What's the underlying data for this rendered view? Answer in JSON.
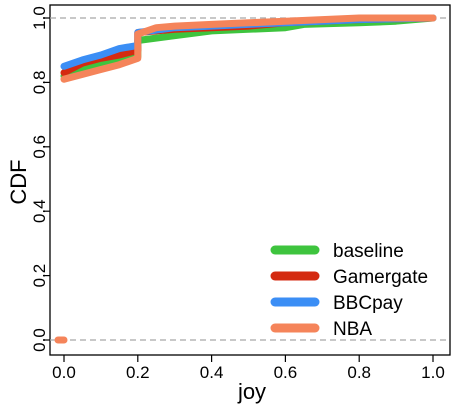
{
  "chart_data": {
    "type": "line",
    "title": "",
    "xlabel": "joy",
    "ylabel": "CDF",
    "xlim": [
      0.0,
      1.0
    ],
    "ylim": [
      0.0,
      1.0
    ],
    "x_ticks": [
      "0.0",
      "0.2",
      "0.4",
      "0.6",
      "0.8",
      "1.0"
    ],
    "y_ticks": [
      "0.0",
      "0.2",
      "0.4",
      "0.6",
      "0.8",
      "1.0"
    ],
    "x_tick_values": [
      0.0,
      0.2,
      0.4,
      0.6,
      0.8,
      1.0
    ],
    "y_tick_values": [
      0.0,
      0.2,
      0.4,
      0.6,
      0.8,
      1.0
    ],
    "reference_lines_y": [
      0.0,
      1.0
    ],
    "legend_position": "bottom-right",
    "series": [
      {
        "name": "baseline",
        "color": "#3ec43e",
        "points": [
          [
            0.0,
            0.82
          ],
          [
            0.05,
            0.84
          ],
          [
            0.1,
            0.855
          ],
          [
            0.15,
            0.87
          ],
          [
            0.2,
            0.88
          ],
          [
            0.2,
            0.93
          ],
          [
            0.3,
            0.945
          ],
          [
            0.4,
            0.96
          ],
          [
            0.5,
            0.965
          ],
          [
            0.6,
            0.97
          ],
          [
            0.65,
            0.98
          ],
          [
            0.8,
            0.985
          ],
          [
            0.9,
            0.99
          ],
          [
            1.0,
            1.0
          ]
        ]
      },
      {
        "name": "Gamergate",
        "color": "#d42a10",
        "points": [
          [
            0.0,
            0.83
          ],
          [
            0.05,
            0.86
          ],
          [
            0.1,
            0.875
          ],
          [
            0.15,
            0.885
          ],
          [
            0.2,
            0.9
          ],
          [
            0.2,
            0.955
          ],
          [
            0.3,
            0.965
          ],
          [
            0.4,
            0.97
          ],
          [
            0.5,
            0.975
          ],
          [
            0.6,
            0.985
          ],
          [
            0.7,
            0.99
          ],
          [
            0.8,
            0.995
          ],
          [
            1.0,
            1.0
          ]
        ]
      },
      {
        "name": "BBCpay",
        "color": "#3b8ef5",
        "points": [
          [
            0.0,
            0.85
          ],
          [
            0.05,
            0.87
          ],
          [
            0.1,
            0.885
          ],
          [
            0.15,
            0.905
          ],
          [
            0.2,
            0.915
          ],
          [
            0.2,
            0.955
          ],
          [
            0.3,
            0.97
          ],
          [
            0.4,
            0.975
          ],
          [
            0.5,
            0.98
          ],
          [
            0.6,
            0.985
          ],
          [
            0.7,
            0.99
          ],
          [
            0.8,
            0.995
          ],
          [
            1.0,
            1.0
          ]
        ]
      },
      {
        "name": "NBA",
        "color": "#f5845a",
        "points": [
          [
            0.0,
            0.81
          ],
          [
            0.05,
            0.825
          ],
          [
            0.1,
            0.84
          ],
          [
            0.15,
            0.855
          ],
          [
            0.2,
            0.875
          ],
          [
            0.2,
            0.95
          ],
          [
            0.25,
            0.97
          ],
          [
            0.3,
            0.975
          ],
          [
            0.4,
            0.98
          ],
          [
            0.5,
            0.985
          ],
          [
            0.6,
            0.99
          ],
          [
            0.7,
            0.995
          ],
          [
            0.8,
            1.0
          ],
          [
            1.0,
            1.0
          ]
        ]
      }
    ],
    "legend_entries": [
      {
        "label": "baseline",
        "color": "#3ec43e"
      },
      {
        "label": "Gamergate",
        "color": "#d42a10"
      },
      {
        "label": "BBCpay",
        "color": "#3b8ef5"
      },
      {
        "label": "NBA",
        "color": "#f5845a"
      }
    ]
  }
}
